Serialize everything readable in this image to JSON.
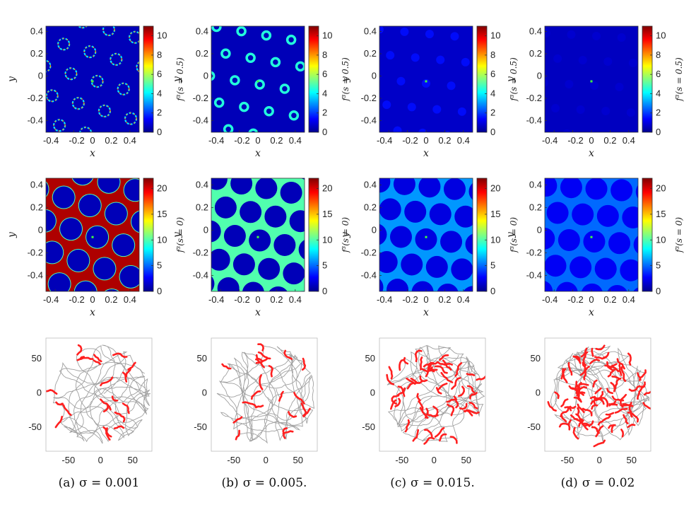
{
  "colorbar_colors": [
    "#00008f",
    "#0000ff",
    "#0080ff",
    "#00ffff",
    "#80ff80",
    "#ffff00",
    "#ff8000",
    "#ff0000",
    "#800000"
  ],
  "rows": [
    {
      "type": "heatmap",
      "xlabel": "x",
      "ylabel": "y",
      "colorbar_label": "f³(s = 0.5)",
      "x_ticks": [
        "-0.4",
        "-0.2",
        "0",
        "0.2",
        "0.4"
      ],
      "y_ticks": [
        "0.4",
        "0.2",
        "0",
        "-0.2",
        "-0.4"
      ],
      "colorbar_ticks": [
        "10",
        "8",
        "6",
        "4",
        "2",
        "0"
      ],
      "colorbar_range": [
        0,
        11
      ]
    },
    {
      "type": "heatmap",
      "xlabel": "x",
      "ylabel": "y",
      "colorbar_label": "f³(s = 0)",
      "x_ticks": [
        "-0.4",
        "-0.2",
        "0",
        "0.2",
        "0.4"
      ],
      "y_ticks": [
        "0.4",
        "0.2",
        "0",
        "-0.2",
        "-0.4"
      ],
      "colorbar_ticks": [
        "20",
        "15",
        "10",
        "5",
        "0"
      ],
      "colorbar_range": [
        0,
        22
      ]
    },
    {
      "type": "trajectory",
      "x_ticks": [
        "-50",
        "0",
        "50"
      ],
      "y_ticks": [
        "50",
        "0",
        "-50"
      ],
      "colors": {
        "path": "#a0a0a0",
        "spikes": "#ff2020"
      }
    }
  ],
  "chart_data": [
    {
      "type": "heatmap",
      "panel": "a-top",
      "colorbar_label": "f³(s = 0.5)",
      "xlim": [
        -0.5,
        0.5
      ],
      "ylim": [
        -0.5,
        0.45
      ],
      "clim": [
        0,
        11
      ],
      "pattern": "thin-rings",
      "peak_value": 8,
      "background_value": 0.5
    },
    {
      "type": "heatmap",
      "panel": "b-top",
      "colorbar_label": "f³(s = 0.5)",
      "xlim": [
        -0.5,
        0.5
      ],
      "ylim": [
        -0.5,
        0.45
      ],
      "clim": [
        0,
        11
      ],
      "pattern": "rings",
      "peak_value": 4.5,
      "background_value": 0.5
    },
    {
      "type": "heatmap",
      "panel": "c-top",
      "colorbar_label": "f³(s = 0.5)",
      "xlim": [
        -0.5,
        0.5
      ],
      "ylim": [
        -0.5,
        0.45
      ],
      "clim": [
        0,
        11
      ],
      "pattern": "blobs",
      "peak_value": 1.5,
      "background_value": 0.7
    },
    {
      "type": "heatmap",
      "panel": "d-top",
      "colorbar_label": "f³(s = 0.5)",
      "xlim": [
        -0.5,
        0.5
      ],
      "ylim": [
        -0.5,
        0.45
      ],
      "clim": [
        0,
        11
      ],
      "pattern": "faint-blobs",
      "peak_value": 0.8,
      "background_value": 0.6
    },
    {
      "type": "heatmap",
      "panel": "a-mid",
      "colorbar_label": "f³(s = 0)",
      "xlim": [
        -0.5,
        0.5
      ],
      "ylim": [
        -0.5,
        0.5
      ],
      "clim": [
        0,
        22
      ],
      "pattern": "holes",
      "high_value": 21,
      "hole_value": 1
    },
    {
      "type": "heatmap",
      "panel": "b-mid",
      "colorbar_label": "f³(s = 0)",
      "xlim": [
        -0.5,
        0.5
      ],
      "ylim": [
        -0.5,
        0.5
      ],
      "clim": [
        0,
        22
      ],
      "pattern": "holes",
      "high_value": 10,
      "hole_value": 1
    },
    {
      "type": "heatmap",
      "panel": "c-mid",
      "colorbar_label": "f³(s = 0)",
      "xlim": [
        -0.5,
        0.5
      ],
      "ylim": [
        -0.5,
        0.5
      ],
      "clim": [
        0,
        22
      ],
      "pattern": "holes",
      "high_value": 6,
      "hole_value": 2
    },
    {
      "type": "heatmap",
      "panel": "d-mid",
      "colorbar_label": "f³(s = 0)",
      "xlim": [
        -0.5,
        0.5
      ],
      "ylim": [
        -0.5,
        0.5
      ],
      "clim": [
        0,
        22
      ],
      "pattern": "holes",
      "high_value": 5,
      "hole_value": 2.5
    },
    {
      "type": "scatter",
      "panel": "a-bottom",
      "xlim": [
        -85,
        80
      ],
      "ylim": [
        -85,
        80
      ],
      "spike_density": "low"
    },
    {
      "type": "scatter",
      "panel": "b-bottom",
      "xlim": [
        -85,
        80
      ],
      "ylim": [
        -85,
        80
      ],
      "spike_density": "low"
    },
    {
      "type": "scatter",
      "panel": "c-bottom",
      "xlim": [
        -85,
        80
      ],
      "ylim": [
        -85,
        80
      ],
      "spike_density": "medium"
    },
    {
      "type": "scatter",
      "panel": "d-bottom",
      "xlim": [
        -85,
        80
      ],
      "ylim": [
        -85,
        80
      ],
      "spike_density": "high"
    }
  ],
  "captions": [
    {
      "label": "(a)",
      "text": "σ = 0.001"
    },
    {
      "label": "(b)",
      "text": "σ = 0.005."
    },
    {
      "label": "(c)",
      "text": "σ = 0.015."
    },
    {
      "label": "(d)",
      "text": "σ = 0.02"
    }
  ]
}
